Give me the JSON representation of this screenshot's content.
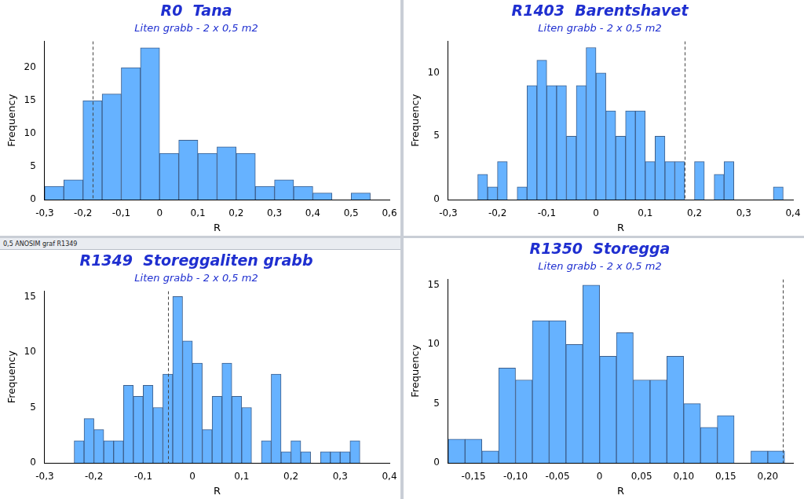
{
  "window_title": "0,5 ANOSIM graf R1349",
  "chart_data": [
    {
      "type": "histogram",
      "title": "R0  Tana",
      "subtitle": "Liten grabb - 2 x 0,5 m2",
      "x_label": "R",
      "y_label": "Frequency",
      "color": "#66b2ff",
      "grid": false,
      "bins": [
        -0.3,
        -0.25,
        -0.2,
        -0.15,
        -0.1,
        -0.05,
        0,
        0.05,
        0.1,
        0.15,
        0.2,
        0.25,
        0.3,
        0.35,
        0.4,
        0.45,
        0.5,
        0.55
      ],
      "values": [
        2,
        3,
        15,
        16,
        20,
        23,
        7,
        9,
        7,
        8,
        7,
        2,
        3,
        2,
        1,
        0,
        1
      ],
      "reference_line": -0.175,
      "xlim": [
        -0.3,
        0.6
      ],
      "xticks": [
        {
          "value": -0.3,
          "label": "-0,3"
        },
        {
          "value": -0.2,
          "label": "-0,2"
        },
        {
          "value": -0.1,
          "label": "-0,1"
        },
        0,
        {
          "value": 0.1,
          "label": "0,1"
        },
        {
          "value": 0.2,
          "label": "0,2"
        },
        {
          "value": 0.3,
          "label": "0,3"
        },
        {
          "value": 0.4,
          "label": "0,4"
        },
        {
          "value": 0.5,
          "label": "0,5"
        },
        {
          "value": 0.6,
          "label": "0,6"
        }
      ],
      "ylim": [
        0,
        24
      ],
      "yticks": [
        0,
        5,
        10,
        15,
        20
      ]
    },
    {
      "type": "histogram",
      "title": "R1403  Barentshavet",
      "subtitle": "Liten grabb - 2 x 0,5 m2",
      "x_label": "R",
      "y_label": "Frequency",
      "color": "#66b2ff",
      "grid": false,
      "bins": [
        -0.24,
        -0.22,
        -0.2,
        -0.18,
        -0.16,
        -0.14,
        -0.12,
        -0.1,
        -0.08,
        -0.06,
        -0.04,
        -0.02,
        0,
        0.02,
        0.04,
        0.06,
        0.08,
        0.1,
        0.12,
        0.14,
        0.16,
        0.18,
        0.2,
        0.22,
        0.24,
        0.26,
        0.28,
        0.3,
        0.32,
        0.34,
        0.36,
        0.38
      ],
      "values": [
        2,
        1,
        3,
        0,
        1,
        9,
        11,
        9,
        9,
        5,
        9,
        12,
        10,
        7,
        5,
        7,
        7,
        3,
        5,
        3,
        3,
        0,
        3,
        0,
        2,
        3,
        0,
        0,
        0,
        0,
        1
      ],
      "reference_line": 0.18,
      "xlim": [
        -0.3,
        0.4
      ],
      "xticks": [
        {
          "value": -0.3,
          "label": "-0,3"
        },
        {
          "value": -0.2,
          "label": "-0,2"
        },
        {
          "value": -0.1,
          "label": "-0,1"
        },
        0,
        {
          "value": 0.1,
          "label": "0,1"
        },
        {
          "value": 0.2,
          "label": "0,2"
        },
        {
          "value": 0.3,
          "label": "0,3"
        },
        {
          "value": 0.4,
          "label": "0,4"
        }
      ],
      "ylim": [
        0,
        12.5
      ],
      "yticks": [
        0,
        5,
        10
      ]
    },
    {
      "type": "histogram",
      "title": "R1349  Storeggaliten grabb",
      "subtitle": "Liten grabb - 2 x 0,5 m2",
      "x_label": "R",
      "y_label": "Frequency",
      "color": "#66b2ff",
      "grid": false,
      "bins": [
        -0.24,
        -0.22,
        -0.2,
        -0.18,
        -0.16,
        -0.14,
        -0.12,
        -0.1,
        -0.08,
        -0.06,
        -0.04,
        -0.02,
        0,
        0.02,
        0.04,
        0.06,
        0.08,
        0.1,
        0.12,
        0.14,
        0.16,
        0.18,
        0.2,
        0.22,
        0.24,
        0.26,
        0.28,
        0.3,
        0.32,
        0.34
      ],
      "values": [
        2,
        4,
        3,
        2,
        2,
        7,
        6,
        7,
        5,
        8,
        15,
        11,
        9,
        3,
        6,
        9,
        6,
        5,
        0,
        2,
        8,
        1,
        2,
        1,
        0,
        1,
        1,
        1,
        2
      ],
      "reference_line": -0.05,
      "xlim": [
        -0.3,
        0.4
      ],
      "xticks": [
        {
          "value": -0.3,
          "label": "-0,3"
        },
        {
          "value": -0.2,
          "label": "-0,2"
        },
        {
          "value": -0.1,
          "label": "-0,1"
        },
        0,
        {
          "value": 0.1,
          "label": "0,1"
        },
        {
          "value": 0.2,
          "label": "0,2"
        },
        {
          "value": 0.3,
          "label": "0,3"
        },
        {
          "value": 0.4,
          "label": "0,4"
        }
      ],
      "ylim": [
        0,
        15.5
      ],
      "yticks": [
        0,
        5,
        10,
        15
      ]
    },
    {
      "type": "histogram",
      "title": "R1350  Storegga",
      "subtitle": "Liten grabb - 2 x 0,5 m2",
      "x_label": "R",
      "y_label": "Frequency",
      "color": "#66b2ff",
      "grid": false,
      "bins": [
        -0.18,
        -0.16,
        -0.14,
        -0.12,
        -0.1,
        -0.08,
        -0.06,
        -0.04,
        -0.02,
        0,
        0.02,
        0.04,
        0.06,
        0.08,
        0.1,
        0.12,
        0.14,
        0.16,
        0.18,
        0.2,
        0.22
      ],
      "values": [
        2,
        2,
        1,
        8,
        7,
        12,
        12,
        10,
        15,
        9,
        11,
        7,
        7,
        9,
        5,
        3,
        4,
        0,
        1,
        1
      ],
      "reference_line": 0.218,
      "xlim": [
        -0.18,
        0.23
      ],
      "xticks": [
        {
          "value": -0.15,
          "label": "-0,15"
        },
        {
          "value": -0.1,
          "label": "-0,10"
        },
        {
          "value": -0.05,
          "label": "-0,05"
        },
        0,
        {
          "value": 0.05,
          "label": "0,05"
        },
        {
          "value": 0.1,
          "label": "0,10"
        },
        {
          "value": 0.15,
          "label": "0,15"
        },
        {
          "value": 0.2,
          "label": "0,20"
        }
      ],
      "ylim": [
        0,
        15.5
      ],
      "yticks": [
        0,
        5,
        10,
        15
      ]
    }
  ]
}
